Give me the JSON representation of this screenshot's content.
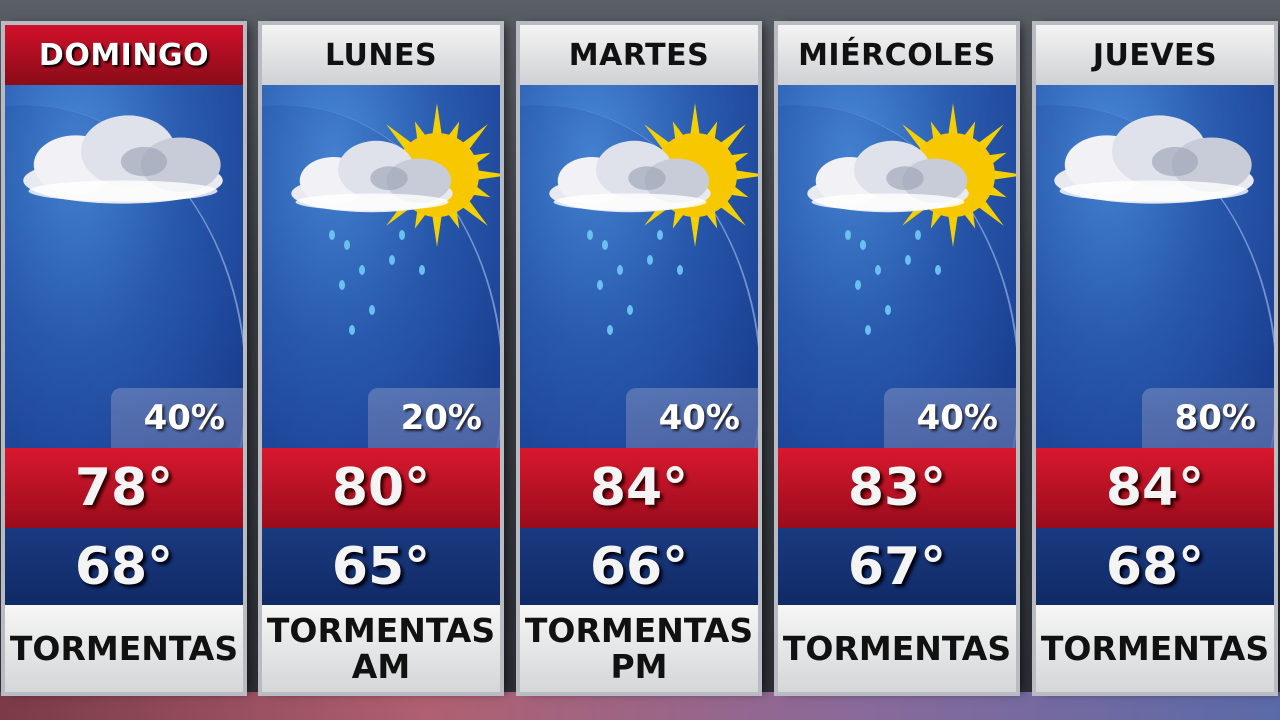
{
  "forecast": [
    {
      "day": "DOMINGO",
      "icon": "cloudy-icon",
      "pop": "40%",
      "high": "78°",
      "low": "68°",
      "condition": [
        "TORMENTAS",
        ""
      ],
      "active": true
    },
    {
      "day": "LUNES",
      "icon": "sun-cloud-rain-icon",
      "pop": "20%",
      "high": "80°",
      "low": "65°",
      "condition": [
        "TORMENTAS",
        "AM"
      ],
      "active": false
    },
    {
      "day": "MARTES",
      "icon": "sun-cloud-rain-icon",
      "pop": "40%",
      "high": "84°",
      "low": "66°",
      "condition": [
        "TORMENTAS",
        "PM"
      ],
      "active": false
    },
    {
      "day": "MIÉRCOLES",
      "icon": "sun-cloud-rain-icon",
      "pop": "40%",
      "high": "83°",
      "low": "67°",
      "condition": [
        "TORMENTAS",
        ""
      ],
      "active": false
    },
    {
      "day": "JUEVES",
      "icon": "cloudy-icon",
      "pop": "80%",
      "high": "84°",
      "low": "68°",
      "condition": [
        "TORMENTAS",
        ""
      ],
      "active": false
    }
  ],
  "colors": {
    "header_active": "#c8102e",
    "high_band": "#c8102e",
    "low_band": "#14306f",
    "sky": "#2a5cb0"
  }
}
